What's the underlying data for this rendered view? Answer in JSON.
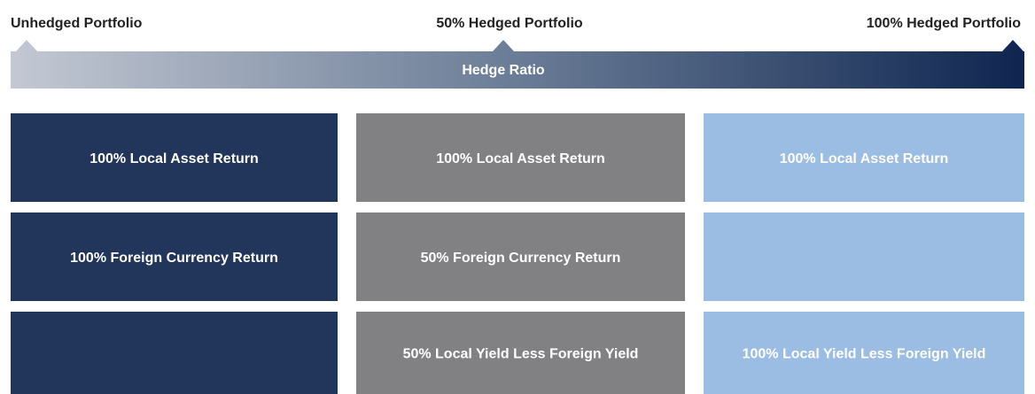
{
  "header": {
    "labels": [
      "Unhedged Portfolio",
      "50% Hedged Portfolio",
      "100% Hedged Portfolio"
    ],
    "bar_label": "Hedge Ratio"
  },
  "columns": [
    {
      "color": "#22355a",
      "text_color": "#ffffff",
      "cells": [
        "100% Local Asset Return",
        "100% Foreign Currency Return",
        null
      ]
    },
    {
      "color": "#818184",
      "text_color": "#ffffff",
      "cells": [
        "100% Local Asset Return",
        "50% Foreign Currency Return",
        "50% Local Yield Less Foreign Yield"
      ]
    },
    {
      "color": "#9bbde3",
      "text_color": "#ffffff",
      "cells": [
        "100% Local Asset Return",
        null,
        "100% Local Yield Less Foreign Yield"
      ]
    }
  ]
}
